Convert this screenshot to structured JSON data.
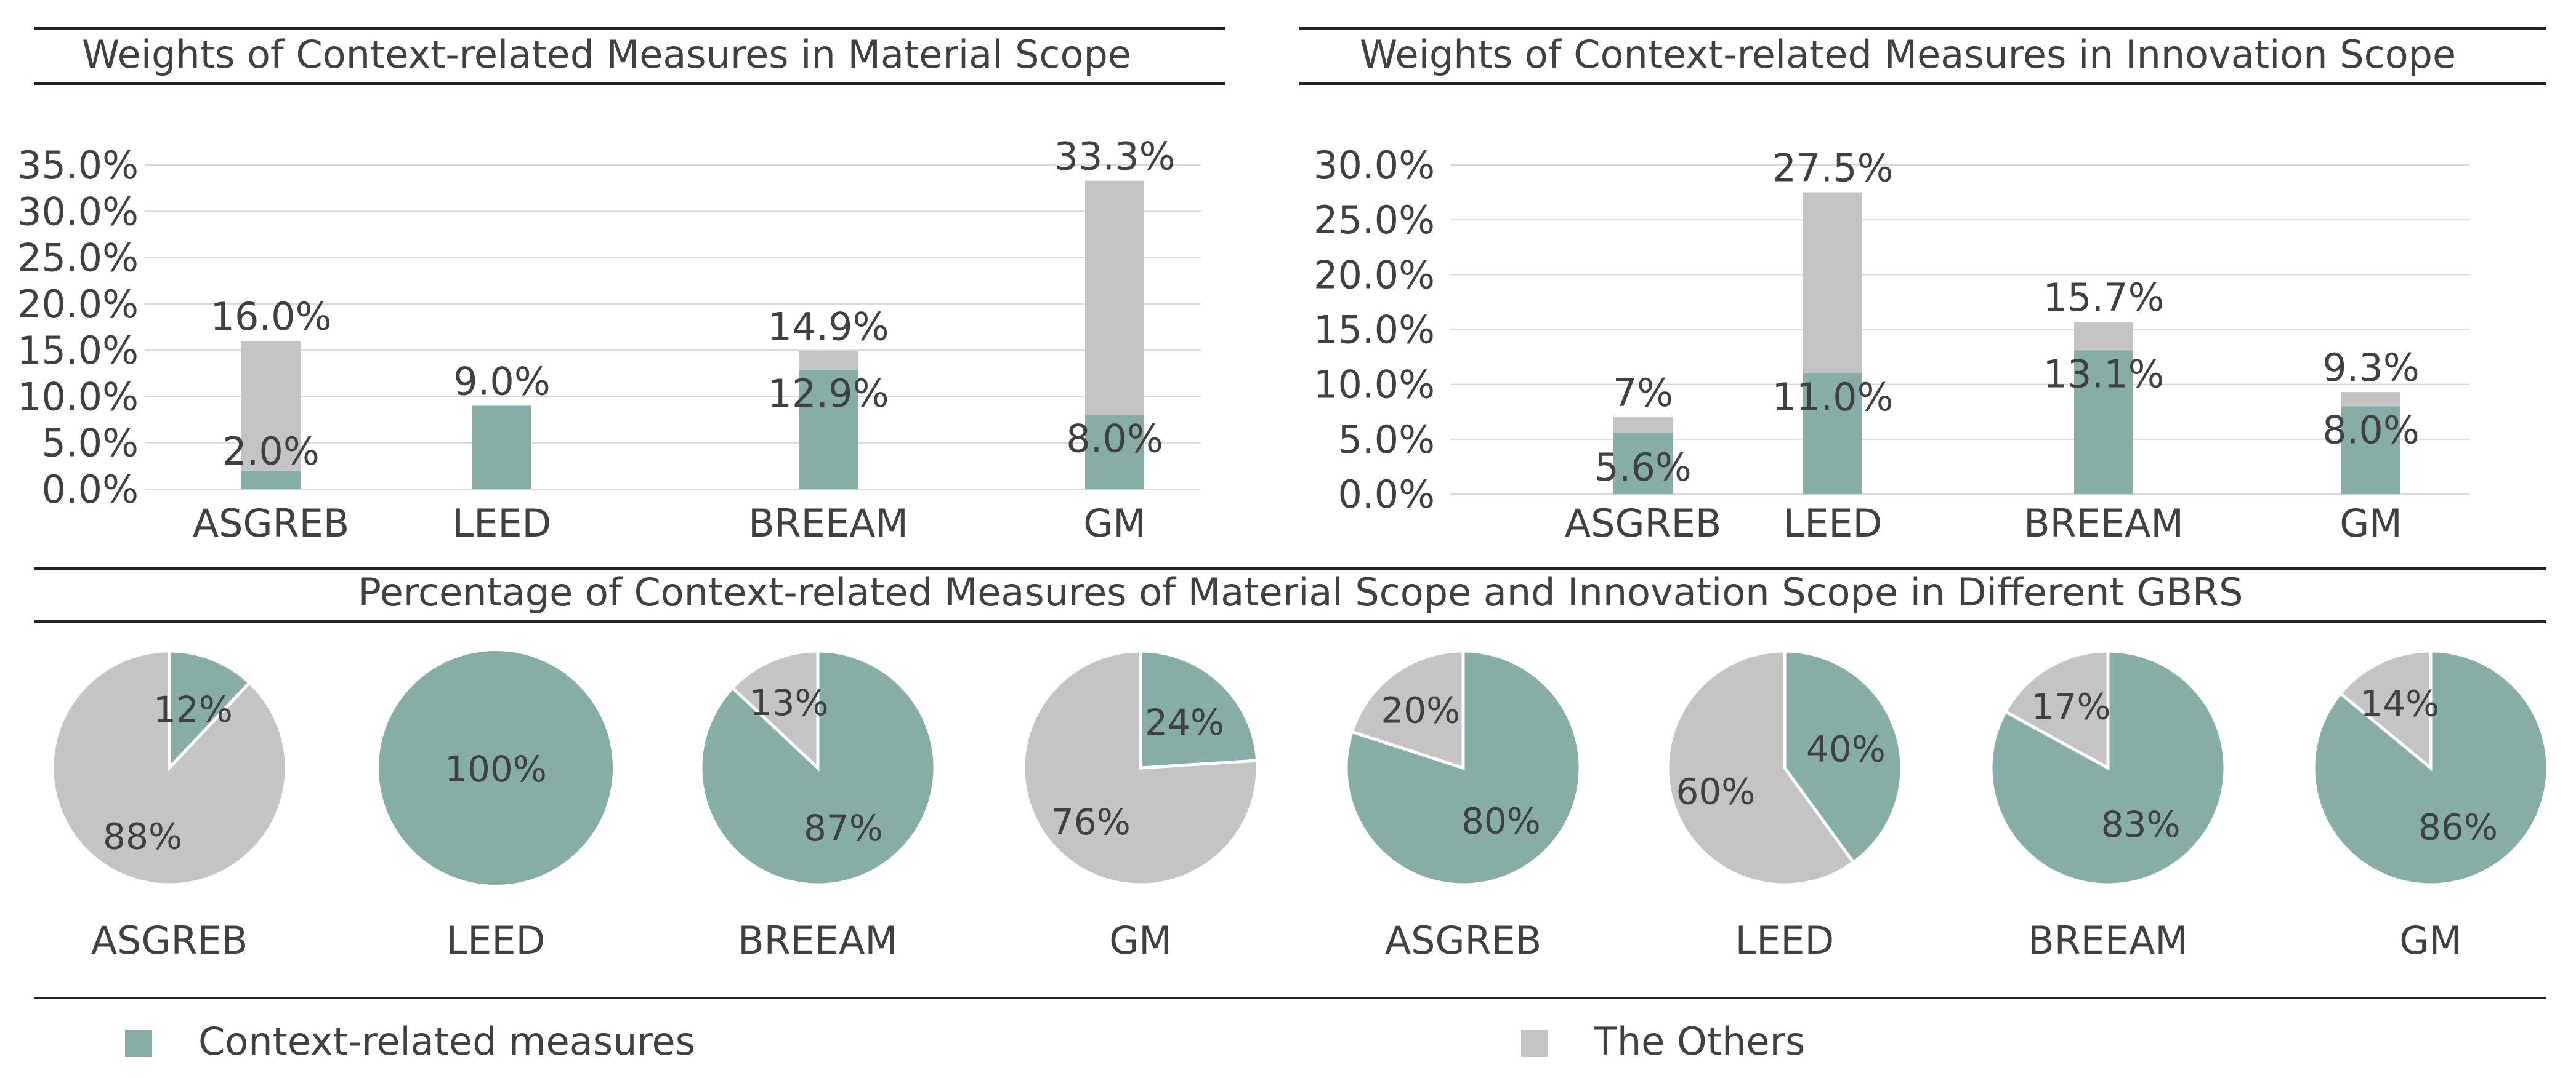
{
  "colors": {
    "context": "#86AEA6",
    "others": "#C4C4C4",
    "text": "#404040",
    "rule": "#222222",
    "grid": "#D9D9D9",
    "slice_edge": "#ffffff"
  },
  "legend": {
    "context_label": "Context-related measures",
    "others_label": "The Others"
  },
  "chart_data": [
    {
      "id": "material",
      "type": "bar",
      "title": "Weights of Context-related Measures in Material Scope",
      "categories": [
        "ASGREB",
        "LEED",
        "BREEAM",
        "GM"
      ],
      "series": [
        {
          "name": "Context-related measures",
          "values": [
            2.0,
            9.0,
            12.9,
            8.0
          ]
        },
        {
          "name": "The Others",
          "values": [
            14.0,
            0.0,
            2.0,
            25.3
          ]
        }
      ],
      "totals": [
        16.0,
        9.0,
        14.9,
        33.3
      ],
      "total_labels": [
        "16.0%",
        "9.0%",
        "14.9%",
        "33.3%"
      ],
      "context_labels": [
        "2.0%",
        "",
        "12.9%",
        "8.0%"
      ],
      "yticks": [
        0,
        5,
        10,
        15,
        20,
        25,
        30,
        35
      ],
      "ytick_labels": [
        "0.0%",
        "5.0%",
        "10.0%",
        "15.0%",
        "20.0%",
        "25.0%",
        "30.0%",
        "35.0%"
      ],
      "ylim": [
        0,
        35
      ],
      "xlabel": "",
      "ylabel": ""
    },
    {
      "id": "innovation",
      "type": "bar",
      "title": "Weights of Context-related Measures in Innovation Scope",
      "categories": [
        "ASGREB",
        "LEED",
        "BREEAM",
        "GM"
      ],
      "series": [
        {
          "name": "Context-related measures",
          "values": [
            5.6,
            11.0,
            13.1,
            8.0
          ]
        },
        {
          "name": "The Others",
          "values": [
            1.4,
            16.5,
            2.6,
            1.3
          ]
        }
      ],
      "totals": [
        7.0,
        27.5,
        15.7,
        9.3
      ],
      "total_labels": [
        "7%",
        "27.5%",
        "15.7%",
        "9.3%"
      ],
      "context_labels": [
        "5.6%",
        "11.0%",
        "13.1%",
        "8.0%"
      ],
      "yticks": [
        0,
        5,
        10,
        15,
        20,
        25,
        30
      ],
      "ytick_labels": [
        "0.0%",
        "5.0%",
        "10.0%",
        "15.0%",
        "20.0%",
        "25.0%",
        "30.0%"
      ],
      "ylim": [
        0,
        30
      ],
      "xlabel": "",
      "ylabel": ""
    },
    {
      "id": "pies",
      "type": "pie",
      "title": "Percentage of Context-related Measures of Material Scope and Innovation Scope in Different GBRS",
      "pies": [
        {
          "label": "ASGREB",
          "context": 12,
          "others": 88,
          "context_label": "12%",
          "others_label": "88%"
        },
        {
          "label": "LEED",
          "context": 100,
          "others": 0,
          "context_label": "100%",
          "others_label": ""
        },
        {
          "label": "BREEAM",
          "context": 87,
          "others": 13,
          "context_label": "87%",
          "others_label": "13%"
        },
        {
          "label": "GM",
          "context": 24,
          "others": 76,
          "context_label": "24%",
          "others_label": "76%"
        },
        {
          "label": "ASGREB",
          "context": 80,
          "others": 20,
          "context_label": "80%",
          "others_label": "20%"
        },
        {
          "label": "LEED",
          "context": 40,
          "others": 60,
          "context_label": "40%",
          "others_label": "60%"
        },
        {
          "label": "BREEAM",
          "context": 83,
          "others": 17,
          "context_label": "83%",
          "others_label": "17%"
        },
        {
          "label": "GM",
          "context": 86,
          "others": 14,
          "context_label": "86%",
          "others_label": "14%"
        }
      ]
    }
  ]
}
